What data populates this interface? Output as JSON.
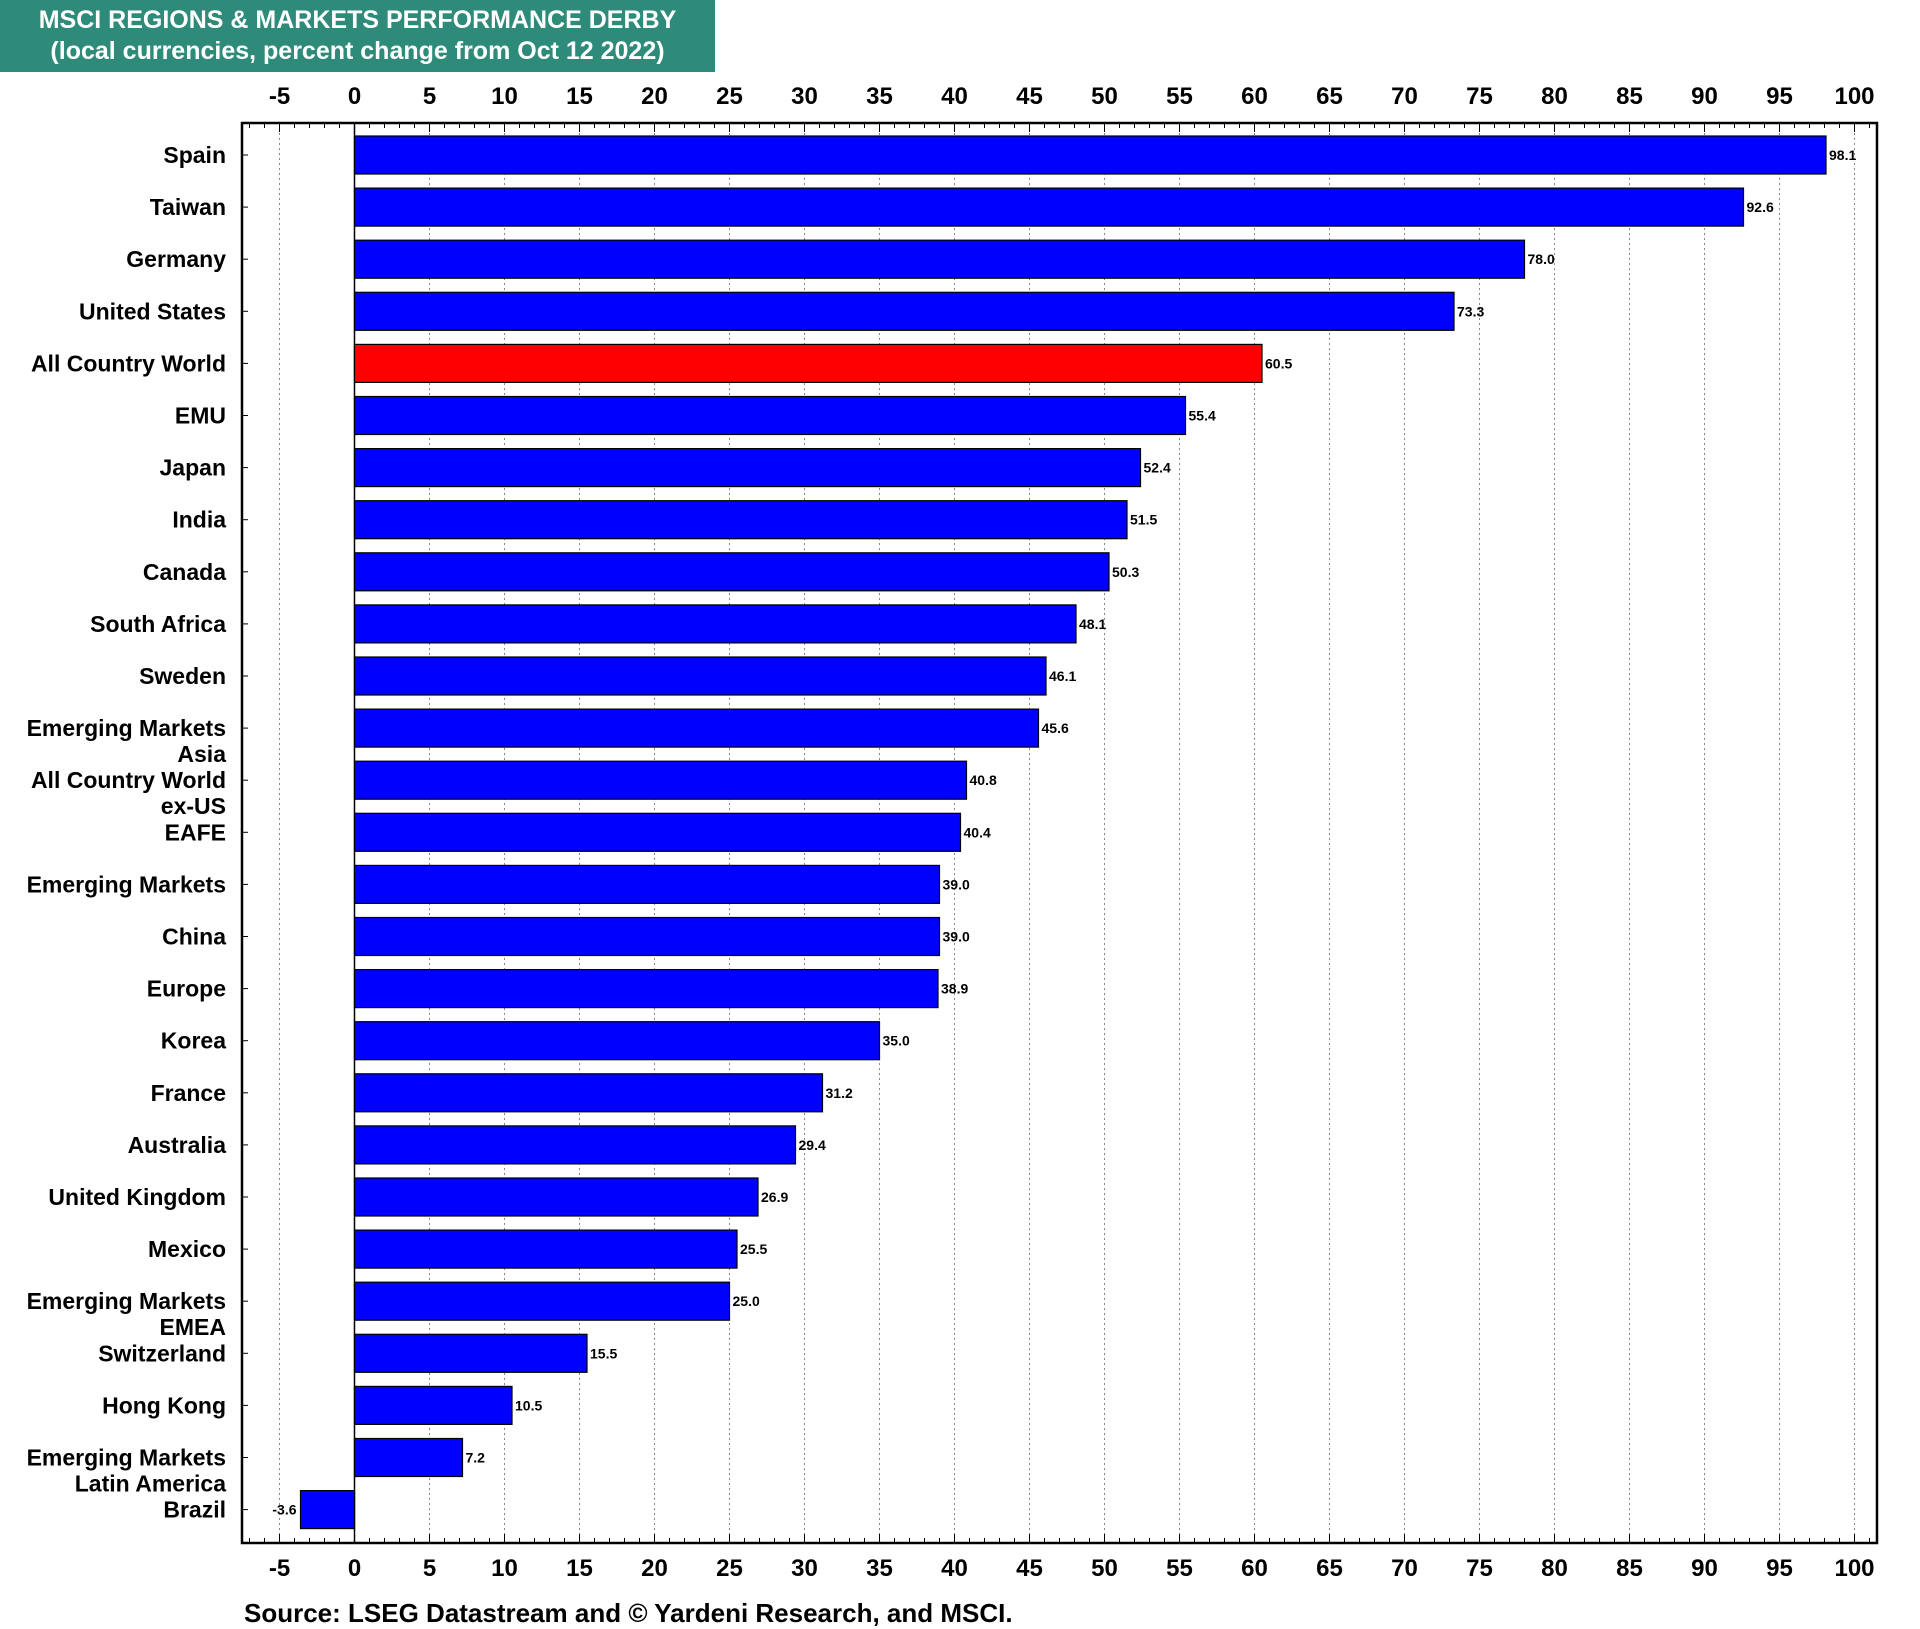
{
  "title": {
    "line1": "MSCI REGIONS & MARKETS PERFORMANCE DERBY",
    "line2": "(local currencies, percent change from Oct 12 2022)"
  },
  "source": "Source: LSEG Datastream and © Yardeni Research, and MSCI.",
  "chart_data": {
    "type": "bar",
    "orientation": "horizontal",
    "categories": [
      [
        "Spain"
      ],
      [
        "Taiwan"
      ],
      [
        "Germany"
      ],
      [
        "United States"
      ],
      [
        "All Country World"
      ],
      [
        "EMU"
      ],
      [
        "Japan"
      ],
      [
        "India"
      ],
      [
        "Canada"
      ],
      [
        "South Africa"
      ],
      [
        "Sweden"
      ],
      [
        "Emerging Markets",
        "Asia"
      ],
      [
        "All Country World",
        "ex-US"
      ],
      [
        "EAFE"
      ],
      [
        "Emerging Markets"
      ],
      [
        "China"
      ],
      [
        "Europe"
      ],
      [
        "Korea"
      ],
      [
        "France"
      ],
      [
        "Australia"
      ],
      [
        "United Kingdom"
      ],
      [
        "Mexico"
      ],
      [
        "Emerging Markets",
        "EMEA"
      ],
      [
        "Switzerland"
      ],
      [
        "Hong Kong"
      ],
      [
        "Emerging Markets",
        "Latin America"
      ],
      [
        "Brazil"
      ]
    ],
    "values": [
      98.1,
      92.6,
      78.0,
      73.3,
      60.5,
      55.4,
      52.4,
      51.5,
      50.3,
      48.1,
      46.1,
      45.6,
      40.8,
      40.4,
      39.0,
      39.0,
      38.9,
      35.0,
      31.2,
      29.4,
      26.9,
      25.5,
      25.0,
      15.5,
      10.5,
      7.2,
      -3.6
    ],
    "value_labels": [
      "98.1",
      "92.6",
      "78.0",
      "73.3",
      "60.5",
      "55.4",
      "52.4",
      "51.5",
      "50.3",
      "48.1",
      "46.1",
      "45.6",
      "40.8",
      "40.4",
      "39.0",
      "39.0",
      "38.9",
      "35.0",
      "31.2",
      "29.4",
      "26.9",
      "25.5",
      "25.0",
      "15.5",
      "10.5",
      "7.2",
      "-3.6"
    ],
    "highlight_index": 4,
    "colors": {
      "bar": "#0000ff",
      "highlight": "#ff0000",
      "title_bg": "#2e8b7a",
      "grid": "#888888"
    },
    "xlim": [
      -7.5,
      101.5
    ],
    "ticks": [
      -5,
      0,
      5,
      10,
      15,
      20,
      25,
      30,
      35,
      40,
      45,
      50,
      55,
      60,
      65,
      70,
      75,
      80,
      85,
      90,
      95,
      100
    ],
    "tick_labels": [
      "-5",
      "0",
      "5",
      "10",
      "15",
      "20",
      "25",
      "30",
      "35",
      "40",
      "45",
      "50",
      "55",
      "60",
      "65",
      "70",
      "75",
      "80",
      "85",
      "90",
      "95",
      "100"
    ],
    "grid": "vertical dotted",
    "axis_position": "top and bottom"
  }
}
